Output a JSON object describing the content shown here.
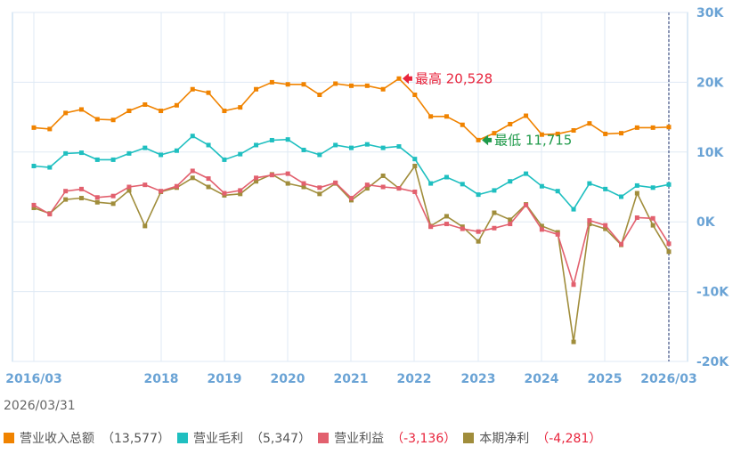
{
  "chart_data": {
    "type": "line",
    "date_label": "2026/03/31",
    "x_tick_labels": [
      "2016/03",
      "2018",
      "2019",
      "2020",
      "2021",
      "2022",
      "2023",
      "2024",
      "2025",
      "2026/03"
    ],
    "y_tick_labels": [
      "30K",
      "20K",
      "10K",
      "0K",
      "-10K",
      "-20K"
    ],
    "ylim": [
      -20000,
      30000
    ],
    "grid": true,
    "legend_position": "bottom",
    "annotations": {
      "max": {
        "label": "最高",
        "value_text": "20,528",
        "value": 20528,
        "color": "#e8243c"
      },
      "min": {
        "label": "最低",
        "value_text": "11,715",
        "value": 11715,
        "color": "#1f9a4a"
      }
    },
    "series": [
      {
        "name": "营业收入总额",
        "latest_text": "（13,577）",
        "color": "#f08300",
        "values": [
          13500,
          13300,
          15600,
          16100,
          14700,
          14600,
          15900,
          16800,
          15900,
          16700,
          19000,
          18500,
          15900,
          16400,
          19000,
          20000,
          19700,
          19700,
          18200,
          19800,
          19500,
          19500,
          19000,
          20528,
          18200,
          15100,
          15100,
          13900,
          11715,
          12700,
          14000,
          15200,
          12500,
          12600,
          13100,
          14100,
          12600,
          12700,
          13500,
          13500,
          13577
        ]
      },
      {
        "name": "营业毛利",
        "latest_text": "（5,347）",
        "color": "#1fbfc0",
        "values": [
          8000,
          7800,
          9800,
          9900,
          8900,
          8900,
          9800,
          10600,
          9600,
          10200,
          12300,
          11000,
          8900,
          9700,
          11000,
          11700,
          11800,
          10300,
          9600,
          11000,
          10600,
          11100,
          10600,
          10800,
          9000,
          5500,
          6400,
          5400,
          3900,
          4500,
          5800,
          6900,
          5100,
          4400,
          1800,
          5500,
          4700,
          3600,
          5200,
          4900,
          5347
        ]
      },
      {
        "name": "营业利益",
        "latest_text": "（-3,136）",
        "color": "#e2606e",
        "values": [
          2400,
          1100,
          4400,
          4700,
          3500,
          3700,
          5000,
          5300,
          4400,
          5100,
          7300,
          6200,
          4100,
          4500,
          6300,
          6700,
          6900,
          5500,
          4900,
          5600,
          3400,
          5300,
          5000,
          4800,
          4300,
          -700,
          -300,
          -1000,
          -1400,
          -900,
          -300,
          2400,
          -1100,
          -1800,
          -9000,
          200,
          -500,
          -3200,
          600,
          500,
          -3136
        ]
      },
      {
        "name": "本期净利",
        "latest_text": "（-4,281）",
        "color": "#a08d3b",
        "values": [
          2000,
          1200,
          3200,
          3400,
          2800,
          2600,
          4500,
          -600,
          4300,
          4900,
          6300,
          5000,
          3800,
          4000,
          5800,
          6800,
          5500,
          5000,
          4000,
          5500,
          3100,
          4800,
          6600,
          4800,
          8000,
          -600,
          800,
          -700,
          -2800,
          1300,
          300,
          2500,
          -600,
          -1500,
          -17200,
          -300,
          -1000,
          -3300,
          4100,
          -500,
          -4281
        ]
      }
    ]
  }
}
